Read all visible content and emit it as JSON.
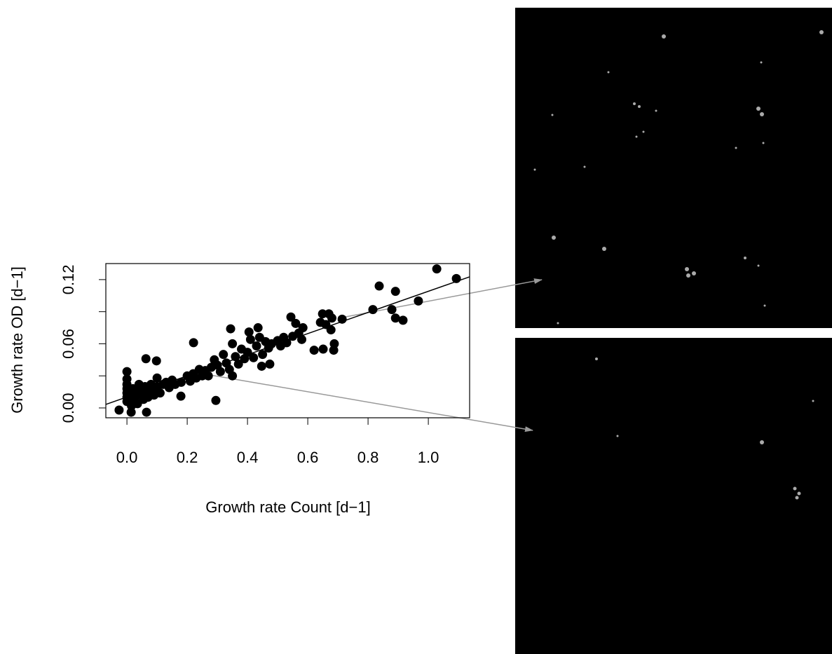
{
  "chart_data": {
    "type": "scatter",
    "xlabel": "Growth rate Count [d−1]",
    "ylabel": "Growth rate OD [d−1]",
    "color": "#000000",
    "xlim": [
      -0.07,
      1.137
    ],
    "ylim": [
      -0.0092,
      0.135
    ],
    "xticks": [
      {
        "value": 0,
        "label": "0.0"
      },
      0.2,
      0.4,
      0.6,
      0.8,
      {
        "value": 1,
        "label": "1.0"
      }
    ],
    "yticks": [
      {
        "value": 0,
        "label": "0.00"
      },
      {
        "value": 0.03,
        "label": null
      },
      {
        "value": 0.06,
        "label": "0.06"
      },
      {
        "value": 0.09,
        "label": null
      },
      {
        "value": 0.12,
        "label": "0.12"
      }
    ],
    "x": [
      -0.026,
      0,
      0,
      0,
      0,
      0,
      0,
      0,
      0.014,
      0.063,
      0.098,
      0.065,
      0.179,
      0.221,
      0.295,
      0.344,
      0.405,
      0.435,
      0.447,
      0.474,
      0.544,
      0.56,
      0.584,
      0.621,
      0.651,
      0.649,
      0.67,
      0.642,
      0.677,
      0.688,
      0.686,
      0.714,
      0.816,
      0.837,
      0.891,
      0.879,
      0.891,
      0.916,
      0.967,
      1.028,
      1.093,
      0.01,
      0.015,
      0.02,
      0.025,
      0.03,
      0.035,
      0.04,
      0.045,
      0.05,
      0.055,
      0.06,
      0.065,
      0.07,
      0.075,
      0.08,
      0.085,
      0.09,
      0.1,
      0.1,
      0.11,
      0.12,
      0.13,
      0.14,
      0.15,
      0.16,
      0.18,
      0.2,
      0.21,
      0.22,
      0.23,
      0.24,
      0.25,
      0.26,
      0.27,
      0.28,
      0.29,
      0.3,
      0.31,
      0.32,
      0.33,
      0.34,
      0.35,
      0.35,
      0.36,
      0.37,
      0.38,
      0.39,
      0.4,
      0.41,
      0.42,
      0.43,
      0.44,
      0.45,
      0.46,
      0.47,
      0.48,
      0.5,
      0.51,
      0.52,
      0.53,
      0.55,
      0.57,
      0.58,
      0.66,
      0.68
    ],
    "y": [
      -0.002,
      0.034,
      0.027,
      0.022,
      0.018,
      0.014,
      0.01,
      0.006,
      -0.004,
      0.046,
      0.044,
      -0.004,
      0.011,
      0.061,
      0.007,
      0.074,
      0.071,
      0.075,
      0.039,
      0.041,
      0.085,
      0.079,
      0.075,
      0.054,
      0.055,
      0.088,
      0.088,
      0.08,
      0.073,
      0.06,
      0.054,
      0.083,
      0.092,
      0.114,
      0.109,
      0.092,
      0.084,
      0.082,
      0.1,
      0.13,
      0.121,
      0.012,
      0.002,
      0.018,
      0.008,
      0.015,
      0.004,
      0.022,
      0.012,
      0.018,
      0.008,
      0.02,
      0.014,
      0.01,
      0.019,
      0.022,
      0.016,
      0.012,
      0.02,
      0.028,
      0.014,
      0.022,
      0.024,
      0.019,
      0.026,
      0.022,
      0.024,
      0.03,
      0.025,
      0.032,
      0.028,
      0.036,
      0.03,
      0.035,
      0.03,
      0.038,
      0.045,
      0.04,
      0.034,
      0.05,
      0.042,
      0.036,
      0.06,
      0.03,
      0.048,
      0.041,
      0.055,
      0.046,
      0.052,
      0.064,
      0.047,
      0.058,
      0.066,
      0.05,
      0.062,
      0.056,
      0.06,
      0.063,
      0.058,
      0.066,
      0.061,
      0.067,
      0.07,
      0.064,
      0.078,
      0.084
    ],
    "regression_line": {
      "x": [
        -0.07,
        1.137
      ],
      "y": [
        0.0033,
        0.1226
      ]
    }
  }
}
